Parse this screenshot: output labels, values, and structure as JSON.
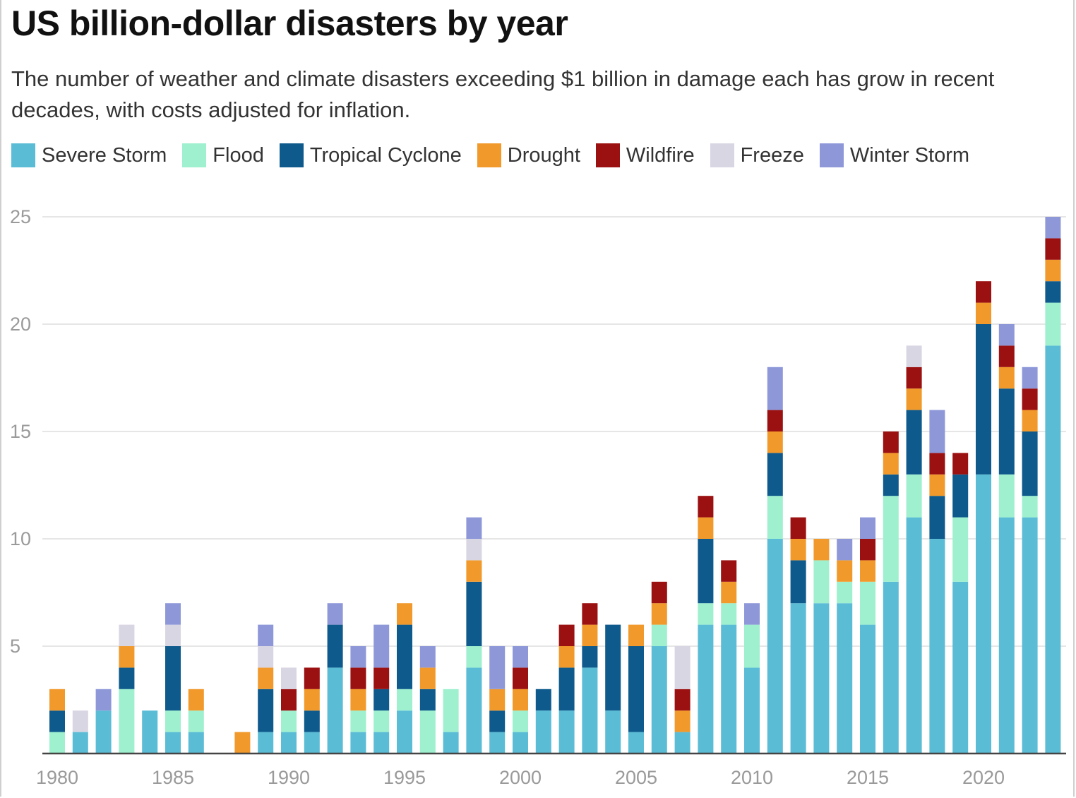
{
  "chart_data": {
    "type": "bar",
    "stacked": true,
    "title": "US billion-dollar disasters by year",
    "subtitle": "The number of weather and climate disasters exceeding $1 billion in damage each has grow in recent decades, with costs adjusted for inflation.",
    "xlabel": "",
    "ylabel": "",
    "ylim": [
      0,
      25
    ],
    "yticks": [
      5,
      10,
      15,
      20,
      25
    ],
    "xticks": [
      1980,
      1985,
      1990,
      1995,
      2000,
      2005,
      2010,
      2015,
      2020
    ],
    "grid": true,
    "legend_position": "top",
    "categories": [
      1980,
      1981,
      1982,
      1983,
      1984,
      1985,
      1986,
      1987,
      1988,
      1989,
      1990,
      1991,
      1992,
      1993,
      1994,
      1995,
      1996,
      1997,
      1998,
      1999,
      2000,
      2001,
      2002,
      2003,
      2004,
      2005,
      2006,
      2007,
      2008,
      2009,
      2010,
      2011,
      2012,
      2013,
      2014,
      2015,
      2016,
      2017,
      2018,
      2019,
      2020,
      2021,
      2022,
      2023
    ],
    "series": [
      {
        "name": "Severe Storm",
        "color": "#5bbcd6",
        "values": [
          0,
          1,
          2,
          0,
          2,
          1,
          1,
          0,
          0,
          1,
          1,
          1,
          4,
          1,
          1,
          2,
          0,
          1,
          4,
          1,
          1,
          2,
          2,
          4,
          2,
          1,
          5,
          1,
          6,
          6,
          4,
          10,
          7,
          7,
          7,
          6,
          8,
          11,
          10,
          8,
          13,
          11,
          11,
          19
        ]
      },
      {
        "name": "Flood",
        "color": "#9ef0cf",
        "values": [
          1,
          0,
          0,
          3,
          0,
          1,
          1,
          0,
          0,
          0,
          1,
          0,
          0,
          1,
          1,
          1,
          2,
          2,
          1,
          0,
          1,
          0,
          0,
          0,
          0,
          0,
          1,
          0,
          1,
          1,
          2,
          2,
          0,
          2,
          1,
          2,
          4,
          2,
          0,
          3,
          0,
          2,
          1,
          2
        ]
      },
      {
        "name": "Tropical Cyclone",
        "color": "#0e5a8c",
        "values": [
          1,
          0,
          0,
          1,
          0,
          3,
          0,
          0,
          0,
          2,
          0,
          1,
          2,
          0,
          1,
          3,
          1,
          0,
          3,
          1,
          0,
          1,
          2,
          1,
          4,
          4,
          0,
          0,
          3,
          0,
          0,
          2,
          2,
          0,
          0,
          0,
          1,
          3,
          2,
          2,
          7,
          4,
          3,
          1
        ]
      },
      {
        "name": "Drought",
        "color": "#f19a2b",
        "values": [
          1,
          0,
          0,
          1,
          0,
          0,
          1,
          0,
          1,
          1,
          0,
          1,
          0,
          1,
          0,
          1,
          1,
          0,
          1,
          1,
          1,
          0,
          1,
          1,
          0,
          1,
          1,
          1,
          1,
          1,
          0,
          1,
          1,
          1,
          1,
          1,
          1,
          1,
          1,
          0,
          1,
          1,
          1,
          1
        ]
      },
      {
        "name": "Wildfire",
        "color": "#9b1010",
        "values": [
          0,
          0,
          0,
          0,
          0,
          0,
          0,
          0,
          0,
          0,
          1,
          1,
          0,
          1,
          1,
          0,
          0,
          0,
          0,
          0,
          1,
          0,
          1,
          1,
          0,
          0,
          1,
          1,
          1,
          1,
          0,
          1,
          1,
          0,
          0,
          1,
          1,
          1,
          1,
          1,
          1,
          1,
          1,
          1
        ]
      },
      {
        "name": "Freeze",
        "color": "#d9d6e3",
        "values": [
          0,
          1,
          0,
          1,
          0,
          1,
          0,
          0,
          0,
          1,
          1,
          0,
          0,
          0,
          0,
          0,
          0,
          0,
          1,
          0,
          0,
          0,
          0,
          0,
          0,
          0,
          0,
          2,
          0,
          0,
          0,
          0,
          0,
          0,
          0,
          0,
          0,
          1,
          0,
          0,
          0,
          0,
          0,
          0
        ]
      },
      {
        "name": "Winter Storm",
        "color": "#8e98d9",
        "values": [
          0,
          0,
          1,
          0,
          0,
          1,
          0,
          0,
          0,
          1,
          0,
          0,
          1,
          1,
          2,
          0,
          1,
          0,
          1,
          2,
          1,
          0,
          0,
          0,
          0,
          0,
          0,
          0,
          0,
          0,
          1,
          2,
          0,
          0,
          1,
          1,
          0,
          0,
          2,
          0,
          0,
          1,
          1,
          1
        ]
      }
    ]
  }
}
